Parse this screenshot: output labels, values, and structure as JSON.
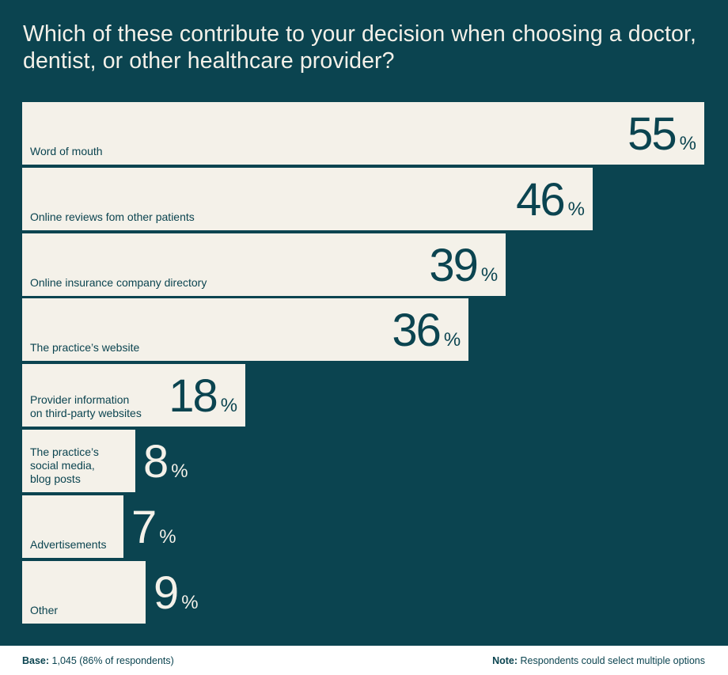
{
  "chart_data": {
    "type": "bar",
    "orientation": "horizontal",
    "title": "Which of these contribute to your decision when choosing a doctor, dentist, or other healthcare provider?",
    "categories": [
      [
        "Word of mouth"
      ],
      [
        "Online reviews fom other patients"
      ],
      [
        "Online insurance company directory"
      ],
      [
        "The practice’s website"
      ],
      [
        "Provider information",
        "on third-party websites"
      ],
      [
        "The practice’s",
        "social media,",
        "blog posts"
      ],
      [
        "Advertisements"
      ],
      [
        "Other"
      ]
    ],
    "values": [
      55,
      46,
      39,
      36,
      18,
      8,
      7,
      9
    ],
    "unit": "%",
    "xlim": [
      0,
      55
    ]
  },
  "footer": {
    "base_label": "Base:",
    "base_text": " 1,045 (86% of respondents)",
    "note_label": "Note:",
    "note_text": " Respondents could select multiple options"
  },
  "colors": {
    "background": "#0b4450",
    "bar": "#f4f1e9"
  }
}
